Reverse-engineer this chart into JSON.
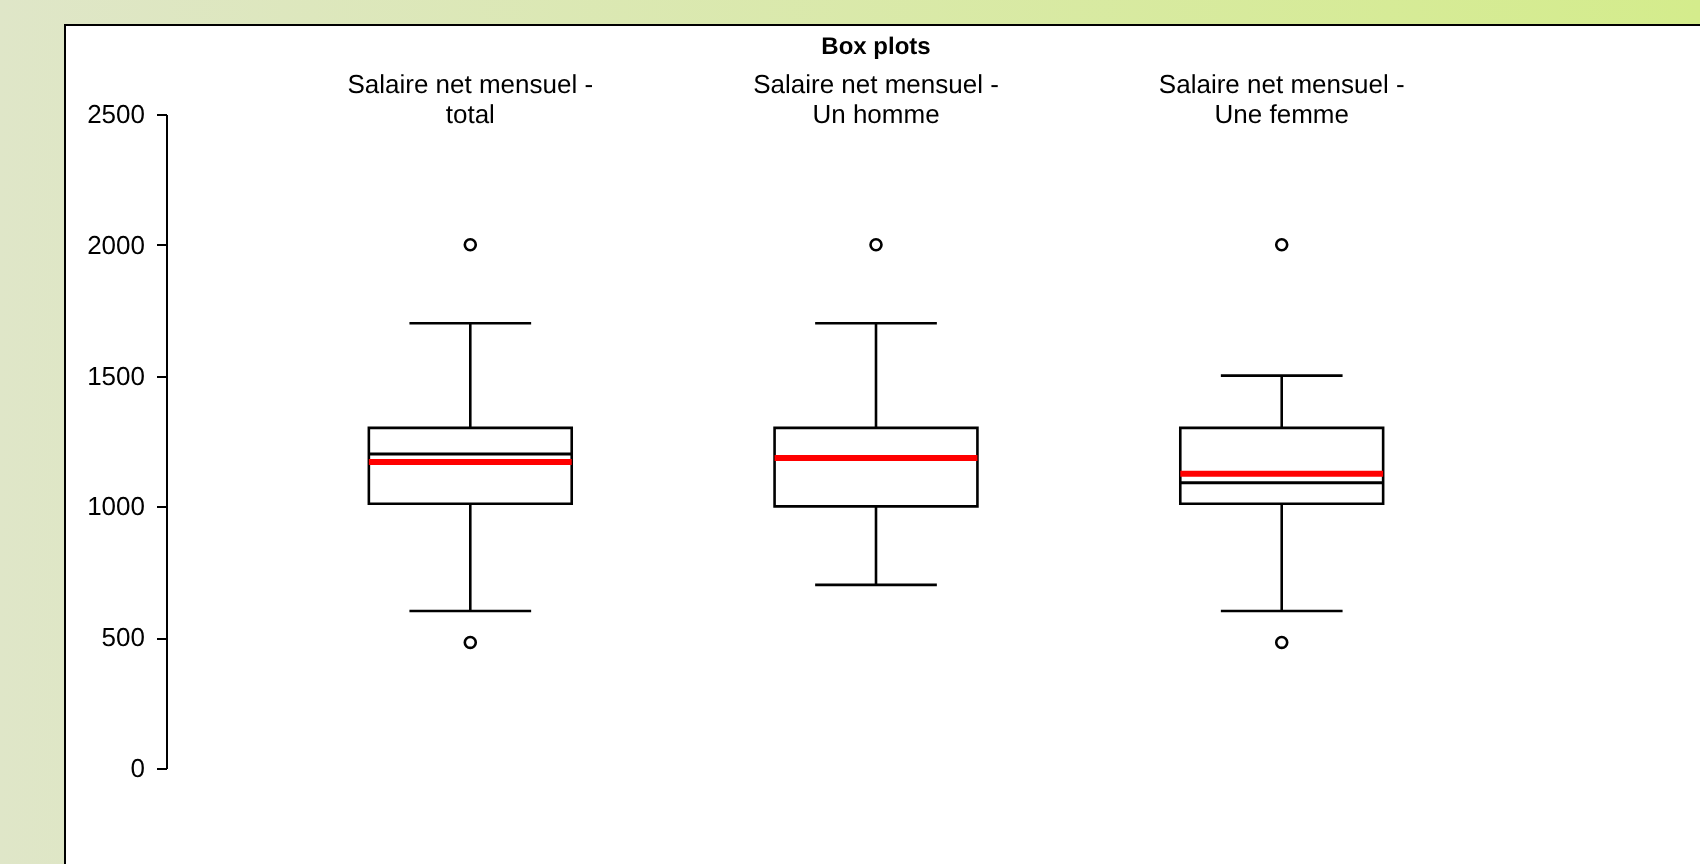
{
  "chart_data": {
    "type": "box",
    "title": "Box plots",
    "categories": [
      "Salaire net mensuel - total",
      "Salaire net mensuel - Un homme",
      "Salaire net mensuel - Une femme"
    ],
    "boxes": [
      {
        "low": 600,
        "q1": 1010,
        "median": 1200,
        "q3": 1300,
        "high": 1700,
        "mean": 1170,
        "outliers": [
          2000,
          480
        ]
      },
      {
        "low": 700,
        "q1": 1000,
        "median": 1190,
        "q3": 1300,
        "high": 1700,
        "mean": 1185,
        "outliers": [
          2000
        ]
      },
      {
        "low": 600,
        "q1": 1010,
        "median": 1090,
        "q3": 1300,
        "high": 1500,
        "mean": 1125,
        "outliers": [
          2000,
          480
        ]
      }
    ],
    "color": "#000000",
    "ylim": [
      0,
      2500
    ],
    "yticks": [
      0,
      500,
      1000,
      1500,
      2000,
      2500
    ],
    "grid": false
  }
}
